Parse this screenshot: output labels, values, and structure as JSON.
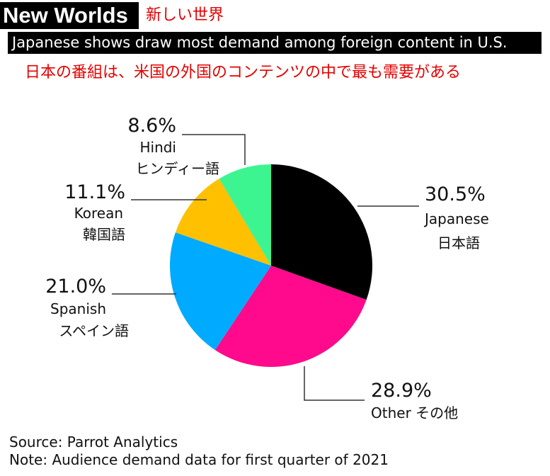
{
  "header": {
    "title": "New Worlds",
    "title_jp": "新しい世界",
    "subtitle": "Japanese shows draw most demand among foreign content in U.S.",
    "subtitle_jp": "日本の番組は、米国の外国のコンテンツの中で最も需要がある"
  },
  "chart_data": {
    "type": "pie",
    "unit": "%",
    "slices": [
      {
        "label": "Japanese",
        "label_jp": "日本語",
        "value": 30.5,
        "display": "30.5%",
        "color": "#000000"
      },
      {
        "label": "Other",
        "label_jp": "その他",
        "value": 28.9,
        "display": "28.9%",
        "color": "#ff0a8c"
      },
      {
        "label": "Spanish",
        "label_jp": "スペイン語",
        "value": 21.0,
        "display": "21.0%",
        "color": "#00aaff"
      },
      {
        "label": "Korean",
        "label_jp": "韓国語",
        "value": 11.1,
        "display": "11.1%",
        "color": "#ffc000"
      },
      {
        "label": "Hindi",
        "label_jp": "ヒンディー語",
        "value": 8.6,
        "display": "8.6%",
        "color": "#3df590"
      }
    ]
  },
  "footer": {
    "source": "Source: Parrot Analytics",
    "note": "Note: Audience demand data for first quarter of 2021"
  }
}
